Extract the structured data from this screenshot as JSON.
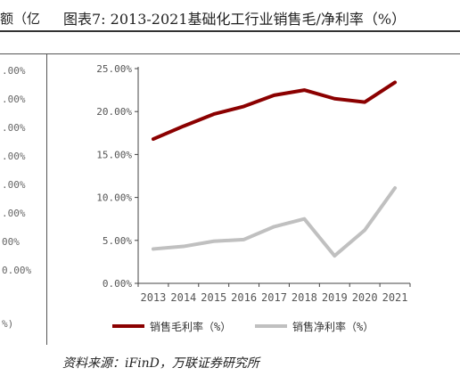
{
  "left_fragment": {
    "title_fragment": "额（亿",
    "axis_labels": [
      ".00%",
      ".00%",
      ".00%",
      ".00%",
      ".00%",
      ".00%",
      "00%",
      "0.00%",
      "%)"
    ]
  },
  "main_title": "图表7:  2013-2021基础化工行业销售毛/净利率（%）",
  "source": "资料来源：iFinD，万联证券研究所",
  "colors": {
    "gross": "#8b0000",
    "net": "#c0c0c0",
    "axis": "#444444",
    "text": "#555555"
  },
  "chart_data": {
    "type": "line",
    "categories": [
      "2013",
      "2014",
      "2015",
      "2016",
      "2017",
      "2018",
      "2019",
      "2020",
      "2021"
    ],
    "series": [
      {
        "name": "销售毛利率（%）",
        "values": [
          16.8,
          18.3,
          19.7,
          20.6,
          21.9,
          22.5,
          21.5,
          21.1,
          23.4
        ]
      },
      {
        "name": "销售净利率（%）",
        "values": [
          4.0,
          4.3,
          4.9,
          5.1,
          6.6,
          7.5,
          3.2,
          6.2,
          11.1
        ]
      }
    ],
    "yticks": [
      "0.00%",
      "5.00%",
      "10.00%",
      "15.00%",
      "20.00%",
      "25.00%"
    ],
    "ylim": [
      0,
      25
    ],
    "legend_position": "bottom"
  }
}
